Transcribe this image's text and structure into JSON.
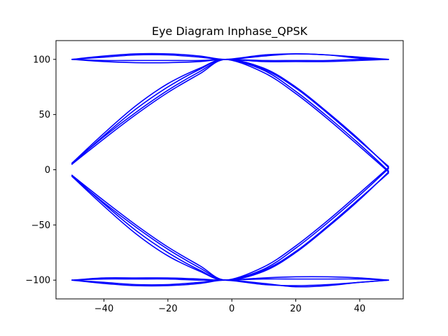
{
  "chart_data": {
    "type": "line",
    "title": "Eye Diagram Inphase_QPSK",
    "xlabel": "",
    "ylabel": "",
    "xlim": [
      -55,
      53.6
    ],
    "ylim": [
      -117,
      117
    ],
    "xticks": [
      -40,
      -20,
      0,
      20,
      40
    ],
    "yticks": [
      -100,
      -50,
      0,
      50,
      100
    ],
    "xtick_labels": [
      "−40",
      "−20",
      "0",
      "20",
      "40"
    ],
    "ytick_labels": [
      "−100",
      "−50",
      "0",
      "50",
      "100"
    ],
    "grid": false,
    "legend": "none",
    "line_color": "#0000ff",
    "series": [
      {
        "x": [
          -50,
          -40,
          -30,
          -20,
          -10,
          -2,
          10,
          20,
          30,
          40,
          49
        ],
        "y": [
          100,
          103,
          105,
          105,
          103,
          100,
          103,
          105,
          104,
          102,
          100
        ]
      },
      {
        "x": [
          -50,
          -40,
          -30,
          -20,
          -10,
          -2,
          10,
          20,
          30,
          40,
          49
        ],
        "y": [
          100,
          102,
          104,
          104,
          102,
          100,
          104,
          105,
          104,
          101,
          100
        ]
      },
      {
        "x": [
          -50,
          -40,
          -30,
          -20,
          -10,
          -2,
          10,
          20,
          30,
          40,
          49
        ],
        "y": [
          100,
          98,
          97,
          97,
          98,
          100,
          98,
          98,
          98,
          99,
          100
        ]
      },
      {
        "x": [
          -50,
          -40,
          -30,
          -20,
          -10,
          -2,
          10,
          20,
          30,
          40,
          49
        ],
        "y": [
          100,
          99,
          99,
          99,
          99,
          100,
          99,
          99,
          99,
          100,
          100
        ]
      },
      {
        "x": [
          -50,
          -40,
          -30,
          -20,
          -10,
          -2,
          10,
          20,
          30,
          40,
          49
        ],
        "y": [
          -100,
          -102,
          -104,
          -104,
          -102,
          -100,
          -104,
          -105,
          -104,
          -102,
          -100
        ]
      },
      {
        "x": [
          -50,
          -40,
          -30,
          -20,
          -10,
          -2,
          10,
          20,
          30,
          40,
          49
        ],
        "y": [
          -100,
          -103,
          -105,
          -105,
          -103,
          -100,
          -103,
          -106,
          -105,
          -102,
          -100
        ]
      },
      {
        "x": [
          -50,
          -40,
          -30,
          -20,
          -10,
          -2,
          10,
          20,
          30,
          40,
          49
        ],
        "y": [
          -100,
          -98,
          -98,
          -98,
          -99,
          -100,
          -98,
          -97,
          -97,
          -98,
          -100
        ]
      },
      {
        "x": [
          -50,
          -40,
          -30,
          -20,
          -10,
          -2,
          10,
          20,
          30,
          40,
          49
        ],
        "y": [
          -100,
          -99,
          -99,
          -99,
          -100,
          -100,
          -99,
          -99,
          -99,
          -99,
          -100
        ]
      },
      {
        "x": [
          -50,
          -40,
          -30,
          -20,
          -10,
          -2,
          10,
          20,
          30,
          40,
          49
        ],
        "y": [
          5,
          31,
          55,
          75,
          91,
          100,
          88,
          69,
          46,
          21,
          -2
        ]
      },
      {
        "x": [
          -50,
          -40,
          -30,
          -20,
          -10,
          -2,
          10,
          20,
          30,
          40,
          49
        ],
        "y": [
          6,
          33,
          58,
          78,
          92,
          100,
          90,
          71,
          48,
          23,
          -1
        ]
      },
      {
        "x": [
          -50,
          -40,
          -30,
          -20,
          -10,
          -2,
          10,
          20,
          30,
          40,
          49
        ],
        "y": [
          5,
          28,
          50,
          70,
          87,
          100,
          91,
          74,
          51,
          26,
          3
        ]
      },
      {
        "x": [
          -50,
          -40,
          -30,
          -20,
          -10,
          -2,
          10,
          20,
          30,
          40,
          49
        ],
        "y": [
          6,
          30,
          52,
          72,
          89,
          100,
          92,
          75,
          52,
          27,
          2
        ]
      },
      {
        "x": [
          -50,
          -40,
          -30,
          -20,
          -10,
          -2,
          10,
          20,
          30,
          40,
          49
        ],
        "y": [
          -5,
          -31,
          -55,
          -75,
          -91,
          -100,
          -88,
          -69,
          -46,
          -21,
          2
        ]
      },
      {
        "x": [
          -50,
          -40,
          -30,
          -20,
          -10,
          -2,
          10,
          20,
          30,
          40,
          49
        ],
        "y": [
          -6,
          -33,
          -58,
          -78,
          -92,
          -100,
          -90,
          -71,
          -48,
          -23,
          1
        ]
      },
      {
        "x": [
          -50,
          -40,
          -30,
          -20,
          -10,
          -2,
          10,
          20,
          30,
          40,
          49
        ],
        "y": [
          -5,
          -28,
          -50,
          -70,
          -87,
          -100,
          -91,
          -74,
          -51,
          -26,
          -3
        ]
      },
      {
        "x": [
          -50,
          -40,
          -30,
          -20,
          -10,
          -2,
          10,
          20,
          30,
          40,
          49
        ],
        "y": [
          -6,
          -30,
          -52,
          -72,
          -89,
          -100,
          -92,
          -75,
          -52,
          -27,
          -2
        ]
      }
    ]
  }
}
